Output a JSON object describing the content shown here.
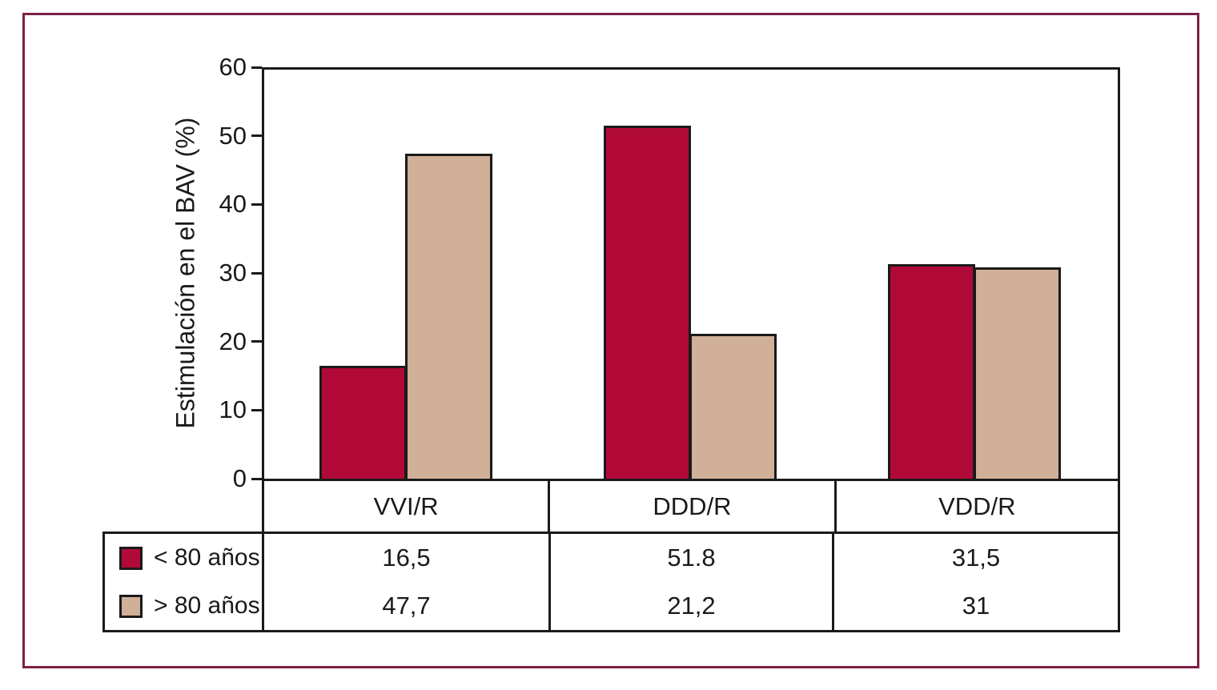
{
  "figure": {
    "kind": "grouped-bar-chart-with-data-table",
    "frame_color": "#7C2146",
    "axis_color": "#1A1A1A",
    "background_color": "#FFFFFF"
  },
  "chart_data": {
    "type": "bar",
    "title": "",
    "xlabel": "",
    "ylabel": "Estimulación en el BAV (%)",
    "ylim": [
      0,
      60
    ],
    "yticks": [
      0,
      10,
      20,
      30,
      40,
      50,
      60
    ],
    "grid": false,
    "legend_position": "table-left-column",
    "categories": [
      "VVI/R",
      "DDD/R",
      "VDD/R"
    ],
    "series": [
      {
        "name": "< 80 años",
        "color": "#B10A38",
        "values": [
          16.5,
          51.8,
          31.5
        ],
        "display_values": [
          "16,5",
          "51.8",
          "31,5"
        ]
      },
      {
        "name": "> 80 años",
        "color": "#D0B098",
        "values": [
          47.7,
          21.2,
          31
        ],
        "display_values": [
          "47,7",
          "21,2",
          "31"
        ]
      }
    ]
  }
}
